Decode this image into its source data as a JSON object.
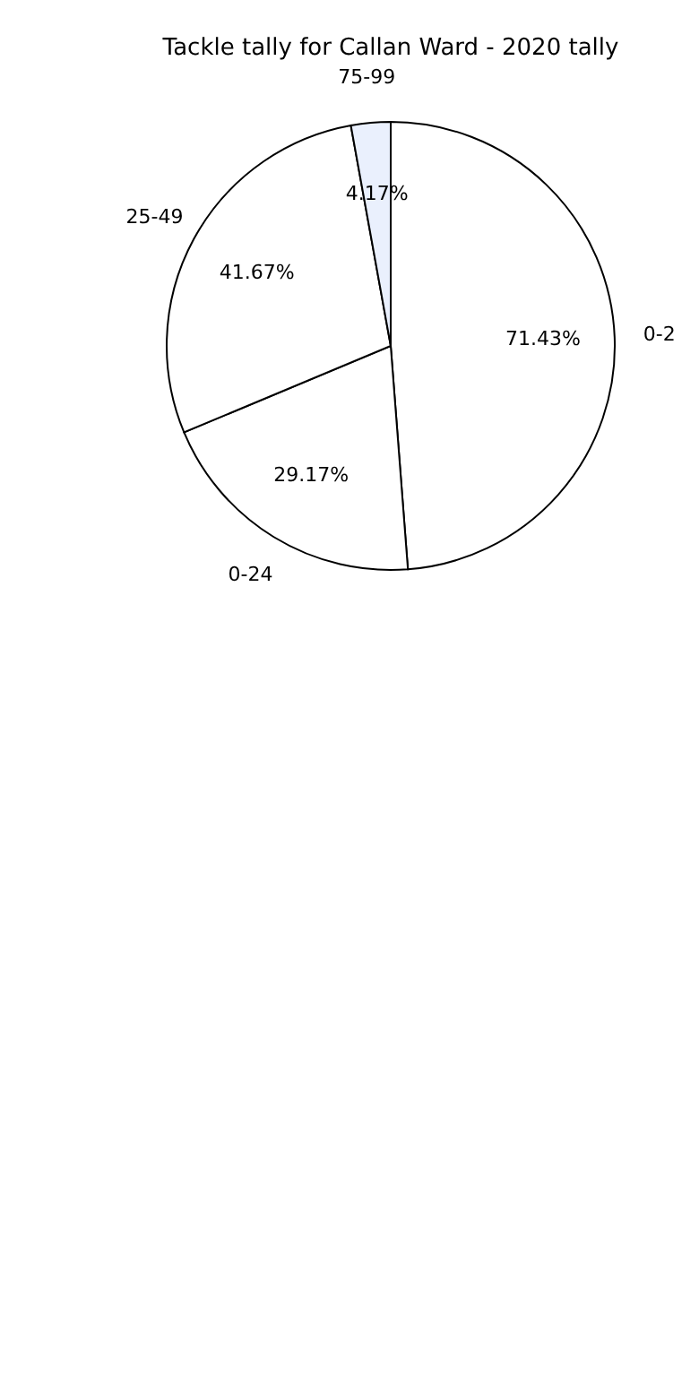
{
  "chart_data": {
    "type": "pie",
    "title": "Tackle tally for Callan Ward - 2020 tally",
    "categories": [
      "0-2",
      "0-24",
      "25-49",
      "75-99"
    ],
    "values": [
      71.43,
      29.17,
      41.67,
      4.17
    ],
    "value_labels": [
      "71.43%",
      "29.17%",
      "41.67%",
      "4.17%"
    ],
    "colors": [
      "#ffffff",
      "#ffffff",
      "#ffffff",
      "#eaf0fd"
    ],
    "legend": false
  }
}
